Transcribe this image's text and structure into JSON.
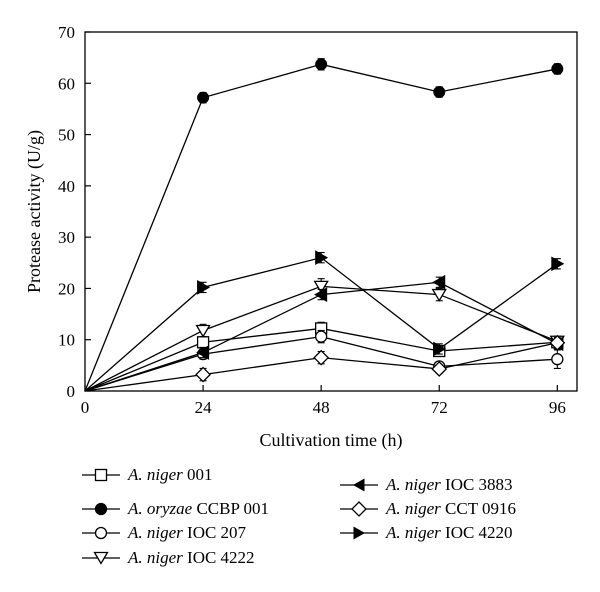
{
  "chart_data": {
    "type": "line",
    "xlabel": "Cultivation time (h)",
    "ylabel": "Protease activity (U/g)",
    "x": [
      0,
      24,
      48,
      72,
      96
    ],
    "xlim": [
      0,
      100
    ],
    "ylim": [
      0,
      70
    ],
    "xticks": [
      0,
      24,
      48,
      72,
      96
    ],
    "yticks": [
      0,
      10,
      20,
      30,
      40,
      50,
      60,
      70
    ],
    "grid": false,
    "legend_position": "bottom",
    "series": [
      {
        "name": "A. niger 001",
        "species": "A. niger",
        "strain": "001",
        "marker": "square-open",
        "values": [
          0,
          9.5,
          12.2,
          7.8,
          9.5
        ],
        "errors": [
          0,
          1.0,
          1.2,
          1.0,
          1.0
        ]
      },
      {
        "name": "A. oryzae CCBP 001",
        "species": "A. oryzae",
        "strain": "CCBP 001",
        "marker": "circle-filled",
        "values": [
          0,
          57.2,
          63.7,
          58.3,
          62.8
        ],
        "errors": [
          0,
          1.0,
          1.1,
          1.0,
          1.0
        ]
      },
      {
        "name": "A. niger IOC 207",
        "species": "A. niger",
        "strain": "IOC 207",
        "marker": "circle-open",
        "values": [
          0,
          7.2,
          10.6,
          4.8,
          6.2
        ],
        "errors": [
          0,
          1.0,
          1.2,
          0.8,
          1.8
        ]
      },
      {
        "name": "A. niger IOC 4222",
        "species": "A. niger",
        "strain": "IOC 4222",
        "marker": "triangle-down-open",
        "values": [
          0,
          11.8,
          20.4,
          18.8,
          9.7
        ],
        "errors": [
          0,
          1.2,
          1.5,
          1.2,
          1.0
        ]
      },
      {
        "name": "A. niger IOC 3883",
        "species": "A. niger",
        "strain": "IOC 3883",
        "marker": "triangle-left-filled",
        "values": [
          0,
          7.5,
          18.8,
          21.2,
          9.2
        ],
        "errors": [
          0,
          1.0,
          1.0,
          1.0,
          1.0
        ]
      },
      {
        "name": "A. niger CCT 0916",
        "species": "A. niger",
        "strain": "CCT 0916",
        "marker": "diamond-open",
        "values": [
          0,
          3.2,
          6.5,
          4.3,
          9.4
        ],
        "errors": [
          0,
          1.2,
          1.2,
          0.8,
          1.0
        ]
      },
      {
        "name": "A. niger IOC 4220",
        "species": "A. niger",
        "strain": "IOC 4220",
        "marker": "triangle-right-filled",
        "values": [
          0,
          20.2,
          26.0,
          8.2,
          24.8
        ],
        "errors": [
          0,
          1.0,
          1.0,
          1.0,
          1.0
        ]
      }
    ]
  }
}
